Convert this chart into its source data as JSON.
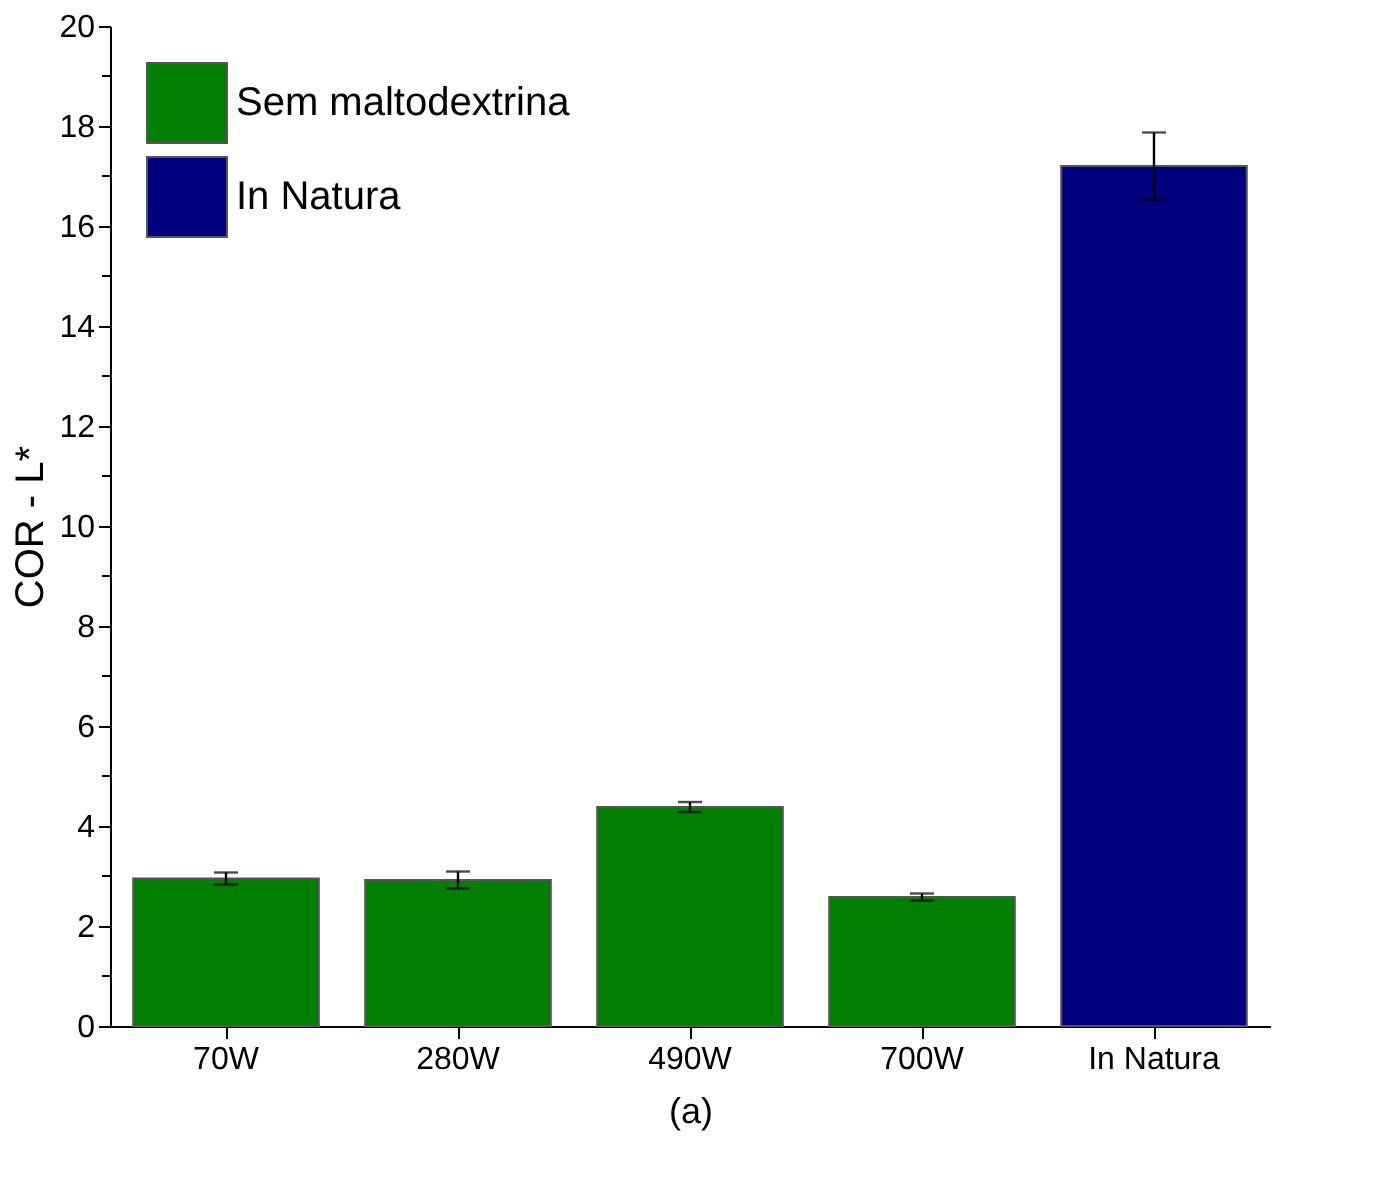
{
  "chart_data": {
    "type": "bar",
    "xlabel": "(a)",
    "ylabel": "COR - L*",
    "categories": [
      "70W",
      "280W",
      "490W",
      "700W",
      "In Natura"
    ],
    "series": [
      {
        "name": "Sem maltodextrina",
        "color": "#007f00",
        "values": [
          2.95,
          2.92,
          4.38,
          2.58,
          null
        ],
        "errors": [
          0.12,
          0.17,
          0.1,
          0.07,
          null
        ]
      },
      {
        "name": "In Natura",
        "color": "#000080",
        "values": [
          null,
          null,
          null,
          null,
          17.2
        ],
        "errors": [
          null,
          null,
          null,
          null,
          0.67
        ]
      }
    ],
    "ylim": [
      0,
      20
    ],
    "yticks": [
      0,
      {
        "value": 1,
        "label": null
      },
      2,
      {
        "value": 3,
        "label": null
      },
      4,
      {
        "value": 5,
        "label": null
      },
      6,
      {
        "value": 7,
        "label": null
      },
      8,
      {
        "value": 9,
        "label": null
      },
      10,
      {
        "value": 11,
        "label": null
      },
      12,
      {
        "value": 13,
        "label": null
      },
      14,
      {
        "value": 15,
        "label": null
      },
      16,
      {
        "value": 17,
        "label": null
      },
      18,
      {
        "value": 19,
        "label": null
      },
      20
    ],
    "grid": false,
    "legend": "top left"
  }
}
